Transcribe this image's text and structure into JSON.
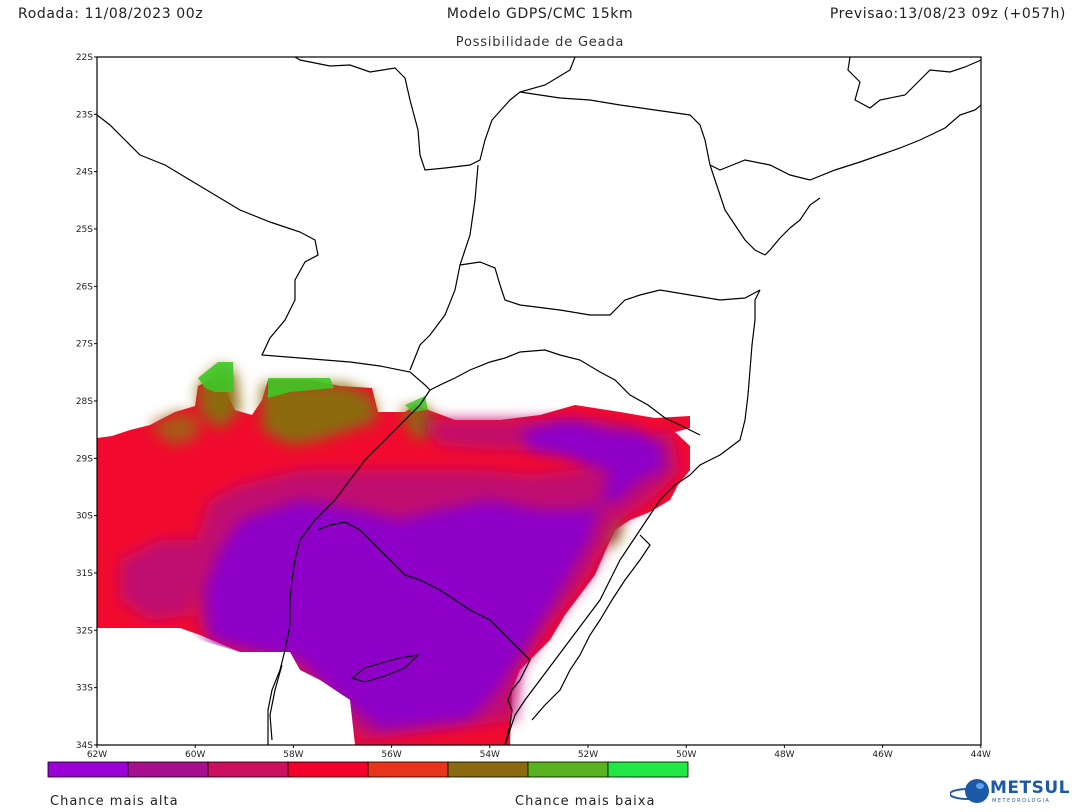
{
  "header": {
    "run": "Rodada: 11/08/2023 00z",
    "model": "Modelo GDPS/CMC 15km",
    "forecast": "Previsao:13/08/23 09z (+057h)",
    "subtitle": "Possibilidade de Geada"
  },
  "map": {
    "lat_labels": [
      "22S",
      "23S",
      "24S",
      "25S",
      "26S",
      "27S",
      "28S",
      "29S",
      "30S",
      "31S",
      "32S",
      "33S",
      "34S"
    ],
    "lon_labels": [
      "62W",
      "60W",
      "58W",
      "56W",
      "54W",
      "52W",
      "50W",
      "48W",
      "46W",
      "44W"
    ]
  },
  "colorbar": {
    "colors": [
      "#9b00d6",
      "#a60f8f",
      "#cc0f5f",
      "#f5002c",
      "#e8341a",
      "#8c6a10",
      "#58b41e",
      "#21e844"
    ],
    "label_high": "Chance mais alta",
    "label_low": "Chance mais baixa"
  },
  "logo": {
    "text": "METSUL",
    "sub": "METEOROLOGIA"
  }
}
